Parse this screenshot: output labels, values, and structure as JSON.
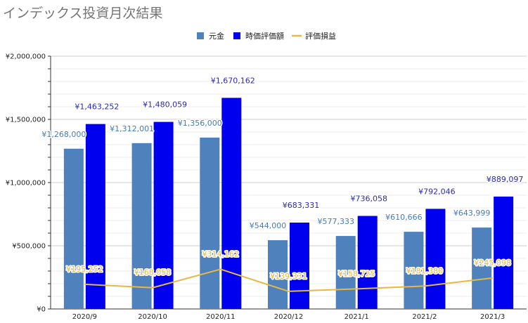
{
  "chart_data": {
    "type": "bar",
    "title": "インデックス投資月次結果",
    "categories": [
      "2020/9",
      "2020/10",
      "2020/11",
      "2020/12",
      "2021/1",
      "2021/2",
      "2021/3"
    ],
    "series": [
      {
        "name": "元金",
        "type": "bar",
        "color": "#4f81bd",
        "label_color": "#4a7ab0",
        "values": [
          1268000,
          1312001,
          1356000,
          544000,
          577333,
          610666,
          643999
        ],
        "labels": [
          "¥1,268,000",
          "¥1,312,001",
          "¥1,356,000",
          "¥544,000",
          "¥577,333",
          "¥610,666",
          "¥643,999"
        ]
      },
      {
        "name": "時価評価額",
        "type": "bar",
        "color": "#0000ee",
        "label_color": "#2a2ab5",
        "values": [
          1463252,
          1480059,
          1670162,
          683331,
          736058,
          792046,
          889097
        ],
        "labels": [
          "¥1,463,252",
          "¥1,480,059",
          "¥1,670,162",
          "¥683,331",
          "¥736,058",
          "¥792,046",
          "¥889,097"
        ]
      },
      {
        "name": "評価損益",
        "type": "line",
        "color": "#e6b844",
        "label_color": "#e6b844",
        "values": [
          195252,
          168058,
          314162,
          139331,
          158725,
          181380,
          245098
        ],
        "labels": [
          "¥195,252",
          "¥168,058",
          "¥314,162",
          "¥139,331",
          "¥158,725",
          "¥181,380",
          "¥245,098"
        ]
      }
    ],
    "y_axis": {
      "min": 0,
      "max": 2000000,
      "major_ticks": [
        0,
        500000,
        1000000,
        1500000,
        2000000
      ],
      "tick_labels": [
        "¥0",
        "¥500,000",
        "¥1,000,000",
        "¥1,500,000",
        "¥2,000,000"
      ],
      "minor_step": 100000
    },
    "grid": true,
    "legend_position": "top-center",
    "xlabel": "",
    "ylabel": ""
  }
}
